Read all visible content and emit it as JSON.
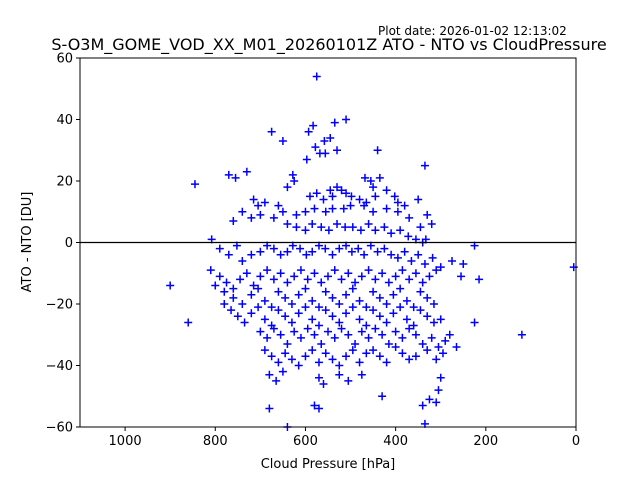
{
  "header": {
    "plot_date": "Plot date: 2026-01-02 12:13:02"
  },
  "chart_data": {
    "type": "scatter",
    "title": "S-O3M_GOME_VOD_XX_M01_20260101Z ATO - NTO vs CloudPressure",
    "xlabel": "Cloud Pressure [hPa]",
    "ylabel": "ATO - NTO [DU]",
    "xlim": [
      1100,
      0
    ],
    "ylim": [
      -60,
      60
    ],
    "x_inverted": true,
    "xticks": [
      1000,
      800,
      600,
      400,
      200,
      0
    ],
    "xtick_labels": [
      "1000",
      "800",
      "600",
      "400",
      "200",
      "0"
    ],
    "yticks": [
      -60,
      -40,
      -20,
      0,
      20,
      40,
      60
    ],
    "ytick_labels": [
      "−60",
      "−40",
      "−20",
      "0",
      "20",
      "40",
      "60"
    ],
    "reference_line_y": 0,
    "grid": false,
    "marker": "plus",
    "marker_color": "#0000ff",
    "series": [
      {
        "points": [
          [
            575,
            54
          ],
          [
            675,
            36
          ],
          [
            583,
            38
          ],
          [
            650,
            33
          ],
          [
            545,
            34
          ],
          [
            558,
            33
          ],
          [
            593,
            36
          ],
          [
            578,
            31
          ],
          [
            535,
            39
          ],
          [
            510,
            40
          ],
          [
            568,
            29
          ],
          [
            556,
            29
          ],
          [
            440,
            30
          ],
          [
            530,
            30
          ],
          [
            597,
            27
          ],
          [
            335,
            25
          ],
          [
            730,
            23
          ],
          [
            755,
            21
          ],
          [
            845,
            19
          ],
          [
            770,
            22
          ],
          [
            640,
            18
          ],
          [
            625,
            20
          ],
          [
            628,
            22
          ],
          [
            468,
            21
          ],
          [
            455,
            20
          ],
          [
            435,
            21
          ],
          [
            450,
            18
          ],
          [
            530,
            18
          ],
          [
            545,
            17
          ],
          [
            520,
            17
          ],
          [
            590,
            15
          ],
          [
            575,
            16
          ],
          [
            560,
            14
          ],
          [
            540,
            15
          ],
          [
            510,
            16
          ],
          [
            498,
            15
          ],
          [
            480,
            14
          ],
          [
            465,
            13
          ],
          [
            445,
            15
          ],
          [
            420,
            17
          ],
          [
            402,
            15
          ],
          [
            395,
            13
          ],
          [
            380,
            12
          ],
          [
            350,
            14
          ],
          [
            330,
            9
          ],
          [
            320,
            6
          ],
          [
            345,
            5
          ],
          [
            370,
            8
          ],
          [
            395,
            10
          ],
          [
            420,
            11
          ],
          [
            450,
            10
          ],
          [
            470,
            12
          ],
          [
            500,
            12
          ],
          [
            515,
            11
          ],
          [
            540,
            11
          ],
          [
            555,
            10
          ],
          [
            580,
            11
          ],
          [
            600,
            10
          ],
          [
            620,
            9
          ],
          [
            650,
            10
          ],
          [
            670,
            8
          ],
          [
            700,
            9
          ],
          [
            720,
            8
          ],
          [
            740,
            10
          ],
          [
            760,
            7
          ],
          [
            690,
            13
          ],
          [
            705,
            12
          ],
          [
            715,
            14
          ],
          [
            660,
            12
          ],
          [
            640,
            6
          ],
          [
            620,
            5
          ],
          [
            600,
            4
          ],
          [
            585,
            6
          ],
          [
            565,
            5
          ],
          [
            548,
            4
          ],
          [
            530,
            6
          ],
          [
            512,
            5
          ],
          [
            495,
            5
          ],
          [
            477,
            4
          ],
          [
            460,
            6
          ],
          [
            445,
            4
          ],
          [
            425,
            5
          ],
          [
            410,
            3
          ],
          [
            390,
            4
          ],
          [
            372,
            2
          ],
          [
            355,
            1
          ],
          [
            340,
            0
          ],
          [
            333,
            1
          ],
          [
            808,
            1
          ],
          [
            790,
            -2
          ],
          [
            770,
            -4
          ],
          [
            752,
            -1
          ],
          [
            740,
            -6
          ],
          [
            720,
            -4
          ],
          [
            700,
            -3
          ],
          [
            685,
            -1
          ],
          [
            670,
            -2
          ],
          [
            655,
            -4
          ],
          [
            640,
            -3
          ],
          [
            628,
            -1
          ],
          [
            612,
            -2
          ],
          [
            598,
            -4
          ],
          [
            585,
            -3
          ],
          [
            570,
            -1
          ],
          [
            556,
            -2
          ],
          [
            540,
            -4
          ],
          [
            525,
            -2
          ],
          [
            510,
            -1
          ],
          [
            497,
            -3
          ],
          [
            483,
            -2
          ],
          [
            470,
            -4
          ],
          [
            455,
            -1
          ],
          [
            440,
            -3
          ],
          [
            425,
            -2
          ],
          [
            410,
            -4
          ],
          [
            395,
            -5
          ],
          [
            380,
            -3
          ],
          [
            365,
            -6
          ],
          [
            350,
            -4
          ],
          [
            335,
            -7
          ],
          [
            318,
            -5
          ],
          [
            300,
            -8
          ],
          [
            275,
            -6
          ],
          [
            250,
            -7
          ],
          [
            225,
            -1
          ],
          [
            5,
            -8
          ],
          [
            810,
            -9
          ],
          [
            790,
            -11
          ],
          [
            775,
            -13
          ],
          [
            760,
            -15
          ],
          [
            745,
            -12
          ],
          [
            730,
            -10
          ],
          [
            715,
            -14
          ],
          [
            700,
            -11
          ],
          [
            685,
            -9
          ],
          [
            670,
            -12
          ],
          [
            655,
            -10
          ],
          [
            640,
            -13
          ],
          [
            625,
            -11
          ],
          [
            610,
            -9
          ],
          [
            595,
            -12
          ],
          [
            580,
            -10
          ],
          [
            565,
            -13
          ],
          [
            550,
            -11
          ],
          [
            535,
            -9
          ],
          [
            520,
            -12
          ],
          [
            505,
            -10
          ],
          [
            490,
            -13
          ],
          [
            475,
            -11
          ],
          [
            460,
            -9
          ],
          [
            445,
            -12
          ],
          [
            430,
            -10
          ],
          [
            415,
            -13
          ],
          [
            400,
            -11
          ],
          [
            385,
            -9
          ],
          [
            370,
            -12
          ],
          [
            355,
            -10
          ],
          [
            340,
            -13
          ],
          [
            325,
            -11
          ],
          [
            310,
            -9
          ],
          [
            255,
            -11
          ],
          [
            215,
            -12
          ],
          [
            800,
            -14
          ],
          [
            780,
            -16
          ],
          [
            760,
            -18
          ],
          [
            740,
            -20
          ],
          [
            720,
            -17
          ],
          [
            705,
            -15
          ],
          [
            690,
            -19
          ],
          [
            675,
            -21
          ],
          [
            660,
            -16
          ],
          [
            645,
            -18
          ],
          [
            630,
            -20
          ],
          [
            615,
            -17
          ],
          [
            600,
            -15
          ],
          [
            585,
            -19
          ],
          [
            570,
            -21
          ],
          [
            555,
            -16
          ],
          [
            540,
            -18
          ],
          [
            525,
            -20
          ],
          [
            510,
            -17
          ],
          [
            495,
            -15
          ],
          [
            480,
            -19
          ],
          [
            465,
            -21
          ],
          [
            450,
            -16
          ],
          [
            435,
            -18
          ],
          [
            420,
            -20
          ],
          [
            405,
            -17
          ],
          [
            390,
            -15
          ],
          [
            375,
            -19
          ],
          [
            360,
            -21
          ],
          [
            345,
            -16
          ],
          [
            330,
            -18
          ],
          [
            315,
            -20
          ],
          [
            780,
            -20
          ],
          [
            765,
            -22
          ],
          [
            750,
            -24
          ],
          [
            735,
            -26
          ],
          [
            720,
            -23
          ],
          [
            705,
            -21
          ],
          [
            690,
            -25
          ],
          [
            675,
            -27
          ],
          [
            660,
            -22
          ],
          [
            645,
            -24
          ],
          [
            630,
            -26
          ],
          [
            615,
            -23
          ],
          [
            600,
            -21
          ],
          [
            585,
            -25
          ],
          [
            570,
            -27
          ],
          [
            555,
            -22
          ],
          [
            540,
            -24
          ],
          [
            525,
            -26
          ],
          [
            510,
            -23
          ],
          [
            495,
            -21
          ],
          [
            480,
            -25
          ],
          [
            465,
            -27
          ],
          [
            450,
            -22
          ],
          [
            435,
            -24
          ],
          [
            420,
            -26
          ],
          [
            405,
            -23
          ],
          [
            390,
            -21
          ],
          [
            375,
            -25
          ],
          [
            360,
            -27
          ],
          [
            345,
            -22
          ],
          [
            330,
            -24
          ],
          [
            315,
            -26
          ],
          [
            300,
            -25
          ],
          [
            225,
            -26
          ],
          [
            860,
            -26
          ],
          [
            900,
            -14
          ],
          [
            700,
            -29
          ],
          [
            685,
            -31
          ],
          [
            670,
            -28
          ],
          [
            655,
            -30
          ],
          [
            640,
            -33
          ],
          [
            625,
            -29
          ],
          [
            610,
            -31
          ],
          [
            595,
            -28
          ],
          [
            580,
            -30
          ],
          [
            565,
            -33
          ],
          [
            550,
            -29
          ],
          [
            535,
            -31
          ],
          [
            520,
            -28
          ],
          [
            505,
            -30
          ],
          [
            490,
            -33
          ],
          [
            475,
            -29
          ],
          [
            460,
            -31
          ],
          [
            445,
            -28
          ],
          [
            430,
            -30
          ],
          [
            415,
            -33
          ],
          [
            400,
            -29
          ],
          [
            385,
            -31
          ],
          [
            370,
            -28
          ],
          [
            355,
            -30
          ],
          [
            340,
            -33
          ],
          [
            320,
            -31
          ],
          [
            305,
            -34
          ],
          [
            290,
            -32
          ],
          [
            280,
            -30
          ],
          [
            265,
            -34
          ],
          [
            120,
            -30
          ],
          [
            690,
            -35
          ],
          [
            675,
            -37
          ],
          [
            660,
            -39
          ],
          [
            645,
            -36
          ],
          [
            630,
            -38
          ],
          [
            615,
            -40
          ],
          [
            600,
            -37
          ],
          [
            585,
            -35
          ],
          [
            570,
            -39
          ],
          [
            555,
            -36
          ],
          [
            540,
            -38
          ],
          [
            525,
            -40
          ],
          [
            510,
            -37
          ],
          [
            495,
            -35
          ],
          [
            480,
            -39
          ],
          [
            465,
            -36
          ],
          [
            450,
            -35
          ],
          [
            435,
            -37
          ],
          [
            420,
            -39
          ],
          [
            400,
            -34
          ],
          [
            385,
            -36
          ],
          [
            370,
            -38
          ],
          [
            355,
            -37
          ],
          [
            330,
            -35
          ],
          [
            310,
            -38
          ],
          [
            295,
            -36
          ],
          [
            680,
            -43
          ],
          [
            665,
            -45
          ],
          [
            650,
            -42
          ],
          [
            570,
            -44
          ],
          [
            560,
            -46
          ],
          [
            525,
            -43
          ],
          [
            505,
            -45
          ],
          [
            475,
            -43
          ],
          [
            430,
            -50
          ],
          [
            305,
            -48
          ],
          [
            310,
            -52
          ],
          [
            325,
            -51
          ],
          [
            340,
            -53
          ],
          [
            300,
            -44
          ],
          [
            680,
            -54
          ],
          [
            580,
            -53
          ],
          [
            570,
            -54
          ],
          [
            335,
            -59
          ],
          [
            640,
            -60
          ]
        ]
      }
    ]
  }
}
